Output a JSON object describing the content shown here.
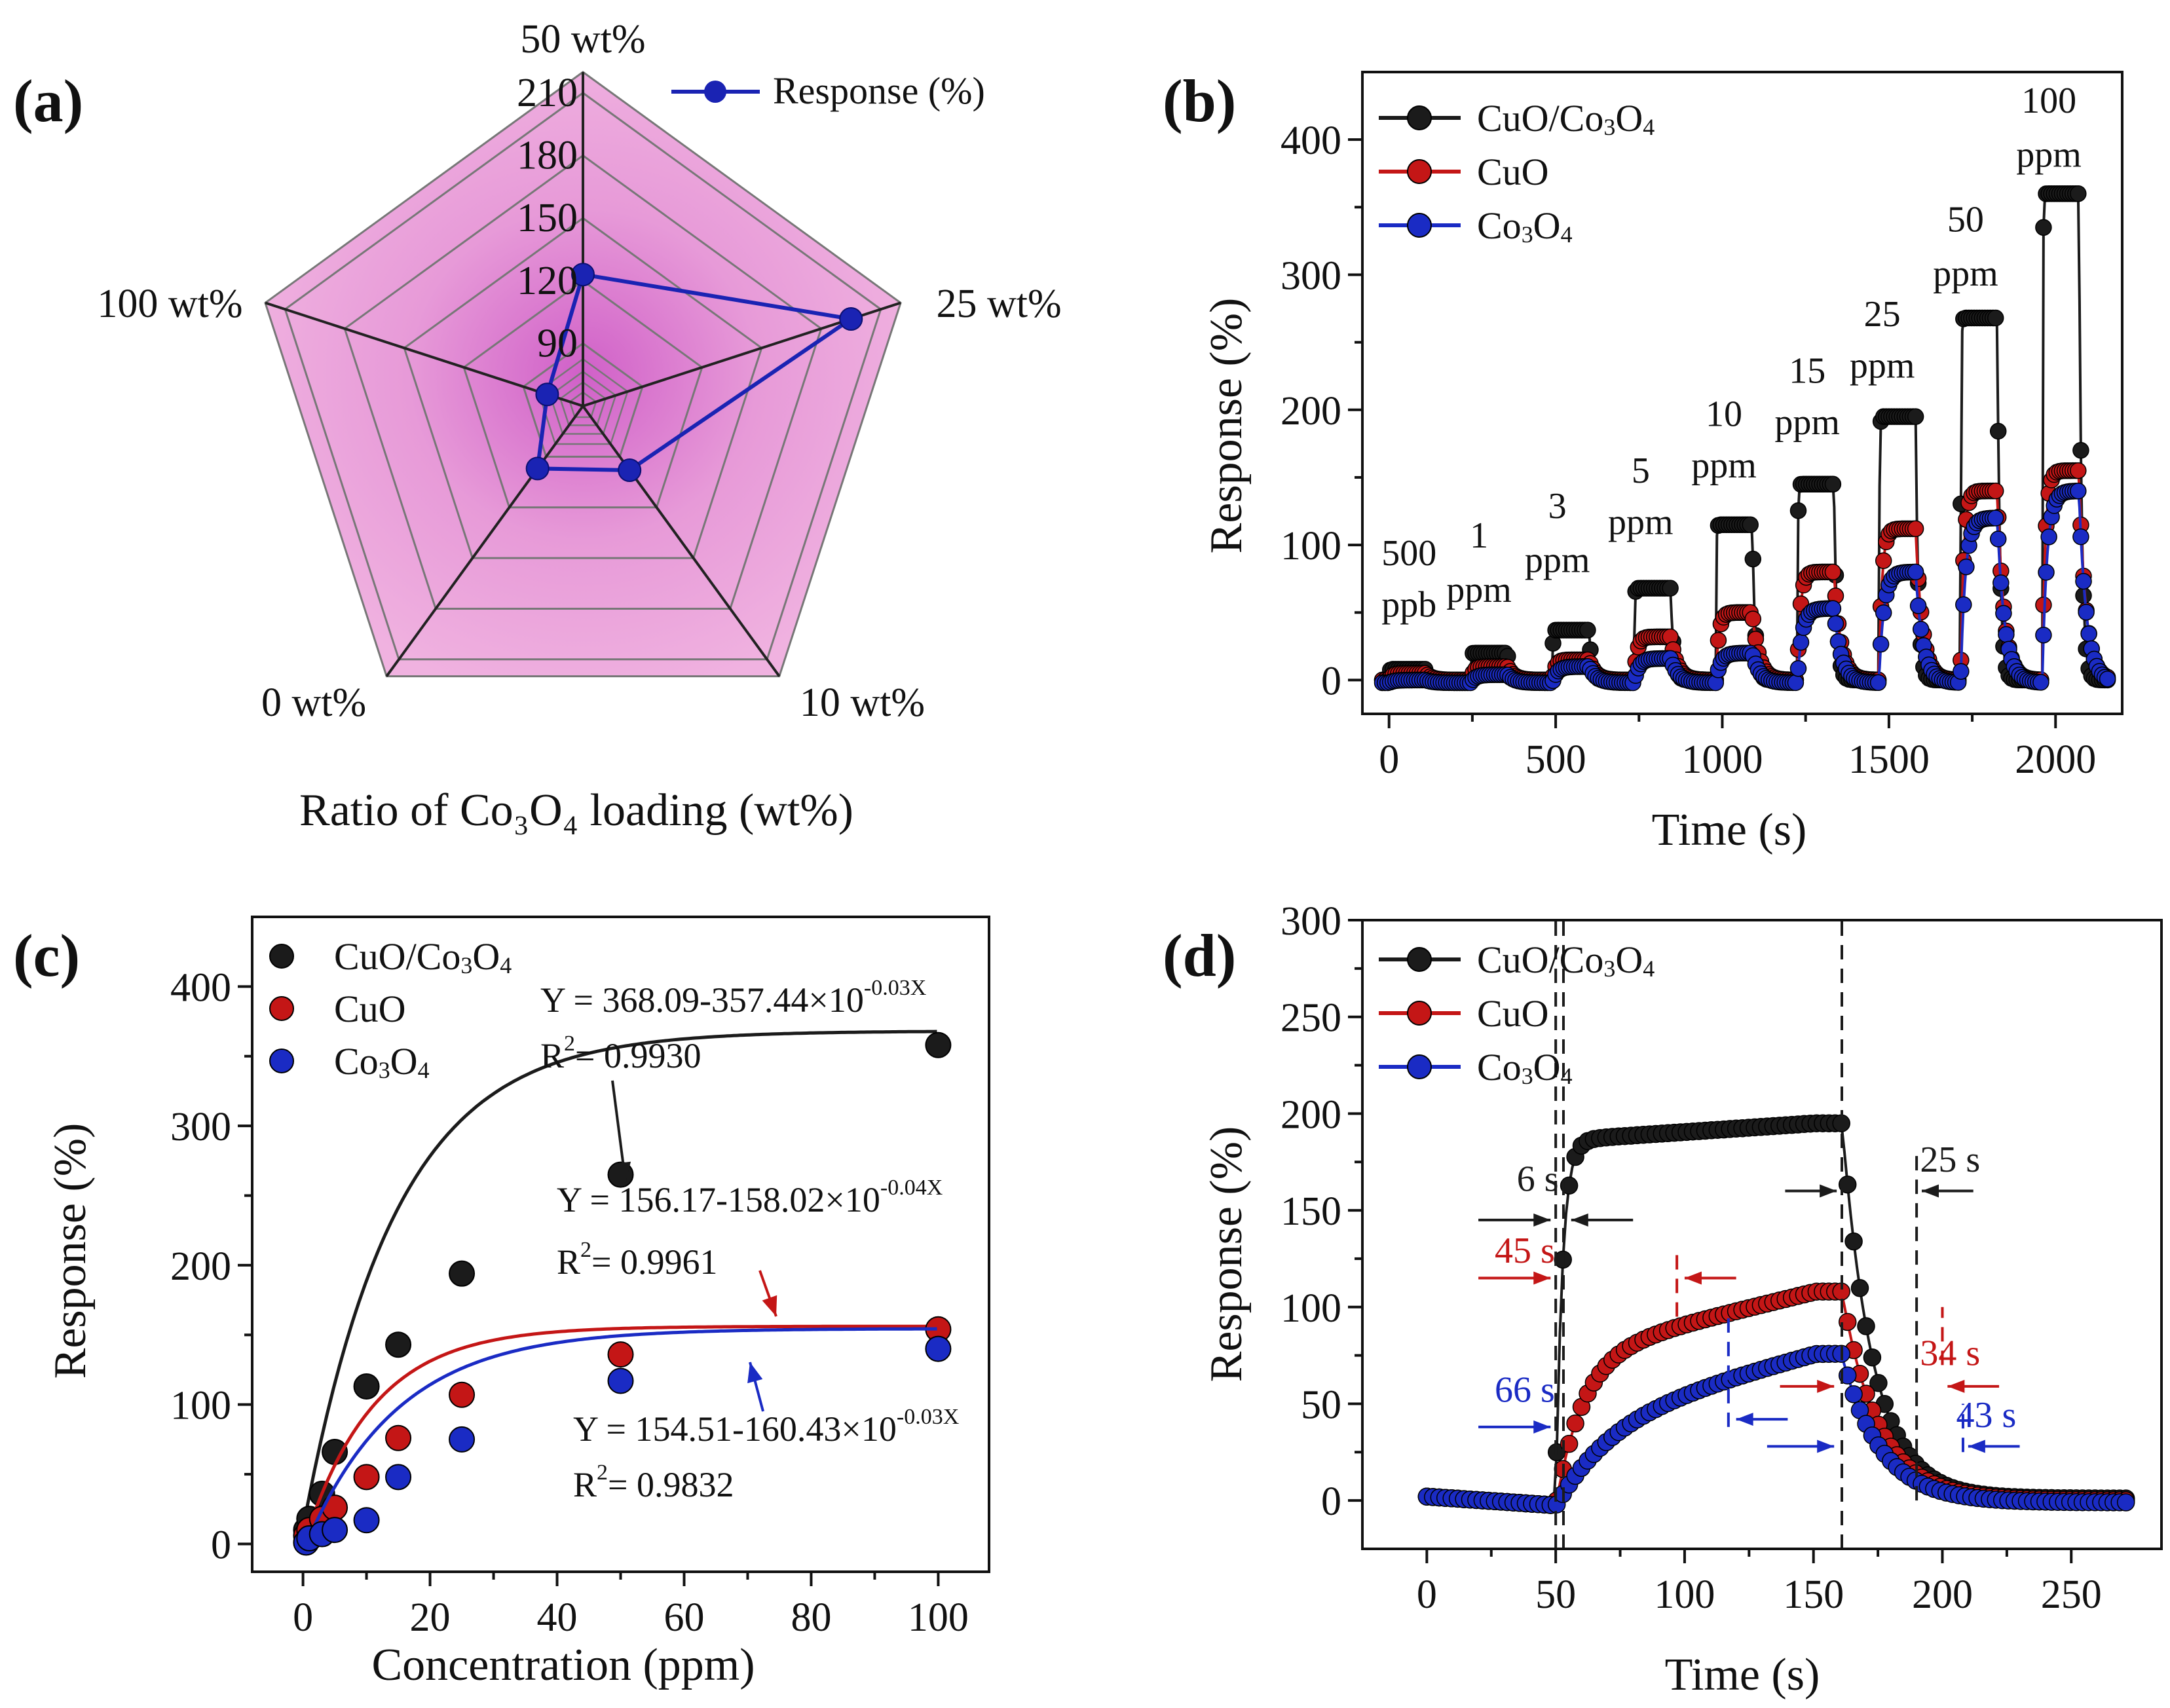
{
  "colors": {
    "black": "#1b1b1b",
    "red": "#c41616",
    "blue": "#1a2bc4",
    "radar_fill": "#f0b2e0",
    "radar_grid": "#777777",
    "radar_line": "#1a23b3"
  },
  "chart_data": [
    {
      "panel": "(a)",
      "type": "radar",
      "title": "",
      "axis_title": "Ratio of Co₃O₄ loading (wt%)",
      "axes": [
        "50 wt%",
        "25 wt%",
        "10 wt%",
        "0 wt%",
        "100 wt%"
      ],
      "rings": [
        90,
        120,
        150,
        180,
        210
      ],
      "ring_labels": [
        "90",
        "120",
        "150",
        "180",
        "210"
      ],
      "range": [
        60,
        220
      ],
      "legend": [
        "Response (%)"
      ],
      "series": [
        {
          "name": "Response (%)",
          "values": [
            123,
            195,
            98,
            97,
            78
          ]
        }
      ]
    },
    {
      "panel": "(b)",
      "type": "line",
      "xlabel": "Time (s)",
      "ylabel": "Response (%)",
      "xlim": [
        -80,
        2200
      ],
      "ylim": [
        -25,
        450
      ],
      "xticks": [
        0,
        500,
        1000,
        1500,
        2000
      ],
      "yticks": [
        0,
        100,
        200,
        300,
        400
      ],
      "legend": [
        "CuO/Co₃O₄",
        "CuO",
        "Co₃O₄"
      ],
      "concentration_labels": [
        {
          "line1": "500",
          "line2": "ppb",
          "x": 60,
          "y1": 85,
          "y2": 47
        },
        {
          "line1": "1",
          "line2": "ppm",
          "x": 270,
          "y1": 98,
          "y2": 58
        },
        {
          "line1": "3",
          "line2": "ppm",
          "x": 505,
          "y1": 120,
          "y2": 80
        },
        {
          "line1": "5",
          "line2": "ppm",
          "x": 755,
          "y1": 146,
          "y2": 108
        },
        {
          "line1": "10",
          "line2": "ppm",
          "x": 1005,
          "y1": 188,
          "y2": 150
        },
        {
          "line1": "15",
          "line2": "ppm",
          "x": 1255,
          "y1": 220,
          "y2": 182
        },
        {
          "line1": "25",
          "line2": "ppm",
          "x": 1480,
          "y1": 262,
          "y2": 224
        },
        {
          "line1": "50",
          "line2": "ppm",
          "x": 1730,
          "y1": 332,
          "y2": 292
        },
        {
          "line1": "100",
          "line2": "ppm",
          "x": 1980,
          "y1": 420,
          "y2": 380
        }
      ],
      "pulses": {
        "start_times": [
          0,
          245,
          490,
          735,
          980,
          1225,
          1470,
          1715,
          1960
        ],
        "on_duration": 110,
        "baseline": 0,
        "CuO/Co₃O₄": [
          8,
          20,
          37,
          68,
          115,
          145,
          195,
          268,
          360
        ],
        "CuO": [
          5,
          10,
          15,
          32,
          50,
          80,
          112,
          140,
          155
        ],
        "Co₃O₄": [
          2,
          6,
          12,
          18,
          22,
          55,
          82,
          122,
          142
        ],
        "tail_end": 2160
      }
    },
    {
      "panel": "(c)",
      "type": "scatter",
      "xlabel": "Concentration (ppm)",
      "ylabel": "Response (%)",
      "xlim": [
        -8,
        108
      ],
      "ylim": [
        -20,
        450
      ],
      "xticks": [
        0,
        20,
        40,
        60,
        80,
        100
      ],
      "yticks": [
        0,
        100,
        200,
        300,
        400
      ],
      "legend": [
        "CuO/Co₃O₄",
        "CuO",
        "Co₃O₄"
      ],
      "x": [
        0.5,
        1,
        3,
        5,
        10,
        15,
        25,
        50,
        100
      ],
      "series": [
        {
          "name": "CuO/Co₃O₄",
          "values": [
            10,
            18,
            36,
            66,
            113,
            143,
            194,
            265,
            358
          ],
          "fit": {
            "a": 368.09,
            "b": 357.44,
            "k": 0.03
          },
          "equation": "Y = 368.09-357.44×10",
          "exponent": "-0.03X",
          "r2_label": "R",
          "r2_value": "= 0.9930"
        },
        {
          "name": "CuO",
          "values": [
            6,
            10,
            18,
            26,
            48,
            76,
            107,
            136,
            154
          ],
          "fit": {
            "a": 156.17,
            "b": 158.02,
            "k": 0.04
          },
          "equation": "Y = 156.17-158.02×10",
          "exponent": "-0.04X",
          "r2_label": "R",
          "r2_value": "= 0.9961"
        },
        {
          "name": "Co₃O₄",
          "values": [
            1,
            4,
            7,
            10,
            17,
            48,
            75,
            117,
            140
          ],
          "fit": {
            "a": 154.51,
            "b": 160.43,
            "k": 0.03
          },
          "equation": "Y = 154.51-160.43×10",
          "exponent": "-0.03X",
          "r2_label": "R",
          "r2_value": "= 0.9832"
        }
      ]
    },
    {
      "panel": "(d)",
      "type": "line",
      "xlabel": "Time (s)",
      "ylabel": "Response (%)",
      "xlim": [
        -25,
        285
      ],
      "ylim": [
        -25,
        300
      ],
      "xticks": [
        0,
        50,
        100,
        150,
        200,
        250
      ],
      "yticks": [
        0,
        50,
        100,
        150,
        200,
        250,
        300
      ],
      "legend": [
        "CuO/Co₃O₄",
        "CuO",
        "Co₃O₄"
      ],
      "gas_on": 50,
      "gas_off": 161,
      "curves": {
        "CuO/Co₃O₄": {
          "plateau_start": 186,
          "plateau_end": 195,
          "tau_rise": 2.5,
          "tau_fall": 12
        },
        "CuO": {
          "plateau_start": 75,
          "plateau_end": 108,
          "tau_rise": 10,
          "tau_fall": 14
        },
        "Co₃O₄": {
          "plateau_start": 40,
          "plateau_end": 76,
          "tau_rise": 18,
          "tau_fall": 15
        }
      },
      "annotations": [
        {
          "text": "6 s",
          "color": "black",
          "x": 43,
          "y": 160
        },
        {
          "text": "25 s",
          "color": "black",
          "x": 203,
          "y": 170
        },
        {
          "text": "45 s",
          "color": "red",
          "x": 38,
          "y": 123
        },
        {
          "text": "34 s",
          "color": "red",
          "x": 203,
          "y": 70
        },
        {
          "text": "66 s",
          "color": "blue",
          "x": 38,
          "y": 51
        },
        {
          "text": "43 s",
          "color": "blue",
          "x": 217,
          "y": 38
        }
      ]
    }
  ]
}
